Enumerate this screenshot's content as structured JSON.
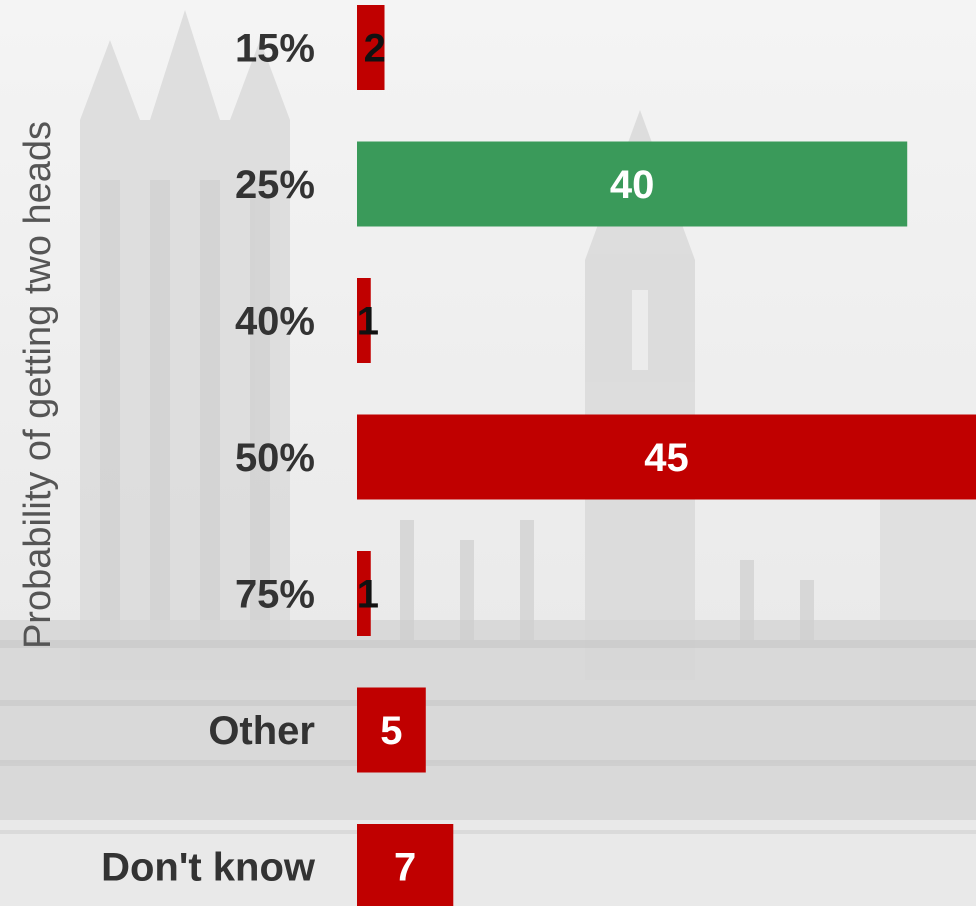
{
  "chart_data": {
    "type": "bar",
    "orientation": "horizontal",
    "ylabel": "Probability of getting two heads",
    "categories": [
      "15%",
      "25%",
      "40%",
      "50%",
      "75%",
      "Other",
      "Don't know"
    ],
    "values": [
      2,
      40,
      1,
      45,
      1,
      5,
      7
    ],
    "highlight_category": "25%",
    "xlim": [
      0,
      45
    ],
    "grid": false,
    "legend": "none"
  },
  "colors": {
    "bar_default": "#c00000",
    "bar_highlight": "#3a9a5a",
    "label_inside": "#ffffff",
    "label_outside": "#111111",
    "category_text": "#333333",
    "axis_title": "#555555"
  },
  "background": {
    "image": "houses-of-parliament-photo",
    "style": "faded greyscale"
  }
}
